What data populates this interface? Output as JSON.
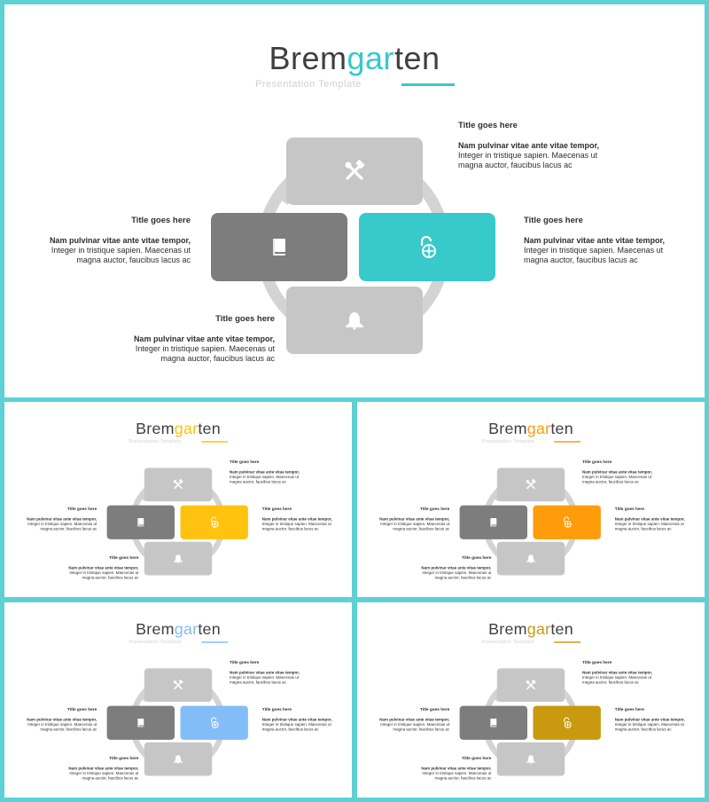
{
  "brand": {
    "pre": "Brem",
    "accent": "gar",
    "post": "ten"
  },
  "subtitle": "Presentation  Template",
  "blocks": {
    "top_right": {
      "title": "Title goes here",
      "subtitle": "Nam pulvinar vitae ante vitae tempor,",
      "body1": "Integer in tristique  sapien. Maecenas ut",
      "body2": "magna auctor, faucibus lacus ac"
    },
    "right": {
      "title": "Title goes here",
      "subtitle": "Nam pulvinar vitae ante vitae tempor,",
      "body1": "Integer in tristique  sapien. Maecenas ut",
      "body2": "magna auctor, faucibus lacus ac"
    },
    "left": {
      "title": "Title goes here",
      "subtitle": "Nam pulvinar vitae ante vitae tempor,",
      "body1": "Integer in tristique  sapien. Maecenas ut",
      "body2": "magna auctor, faucibus lacus ac"
    },
    "bottom": {
      "title": "Title goes here",
      "subtitle": "Nam pulvinar vitae ante vitae tempor,",
      "body1": "Integer in tristique  sapien. Maecenas ut",
      "body2": "magna auctor, faucibus lacus ac"
    }
  },
  "icons": {
    "top": "tools-icon",
    "left": "book-icon",
    "right": "unlock-icon",
    "bottom": "bell-icon"
  },
  "colors": {
    "frame": "#5fd0d3",
    "variants": [
      "#38c9cb",
      "#ffc20e",
      "#ff9c0a",
      "#82bdf7",
      "#c9990f"
    ]
  }
}
